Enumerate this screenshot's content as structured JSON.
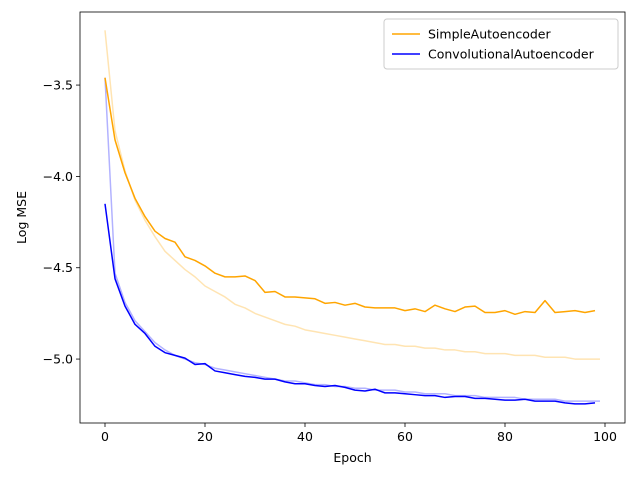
{
  "chart_data": {
    "type": "line",
    "title": "",
    "xlabel": "Epoch",
    "ylabel": "Log MSE",
    "xlim": [
      -5,
      104
    ],
    "ylim": [
      -5.35,
      -3.1
    ],
    "xticks": [
      0,
      20,
      40,
      60,
      80,
      100
    ],
    "xtick_labels": [
      "0",
      "20",
      "40",
      "60",
      "80",
      "100"
    ],
    "yticks": [
      -3.5,
      -4.0,
      -4.5,
      -5.0
    ],
    "ytick_labels": [
      "−3.5",
      "−4.0",
      "−4.5",
      "−5.0"
    ],
    "grid": false,
    "legend_position": "top-right",
    "series": [
      {
        "name": "SimpleAutoencoder",
        "role": "smoothed",
        "color": "#ffa500",
        "x": [
          0,
          2,
          4,
          6,
          8,
          10,
          12,
          14,
          16,
          18,
          20,
          22,
          24,
          26,
          28,
          30,
          32,
          34,
          36,
          38,
          40,
          42,
          44,
          46,
          48,
          50,
          52,
          54,
          56,
          58,
          60,
          62,
          64,
          66,
          68,
          70,
          72,
          74,
          76,
          78,
          80,
          82,
          84,
          86,
          88,
          90,
          92,
          94,
          96,
          98
        ],
        "values": [
          -3.46,
          -3.8,
          -3.98,
          -4.12,
          -4.22,
          -4.3,
          -4.34,
          -4.36,
          -4.44,
          -4.46,
          -4.49,
          -4.53,
          -4.55,
          -4.55,
          -4.545,
          -4.57,
          -4.635,
          -4.63,
          -4.66,
          -4.66,
          -4.665,
          -4.67,
          -4.695,
          -4.69,
          -4.705,
          -4.695,
          -4.715,
          -4.72,
          -4.72,
          -4.72,
          -4.735,
          -4.725,
          -4.74,
          -4.705,
          -4.725,
          -4.74,
          -4.715,
          -4.71,
          -4.745,
          -4.745,
          -4.735,
          -4.755,
          -4.74,
          -4.745,
          -4.68,
          -4.745,
          -4.74,
          -4.735,
          -4.745,
          -4.735
        ]
      },
      {
        "name": "ConvolutionalAutoencoder",
        "role": "smoothed",
        "color": "#0000ff",
        "x": [
          0,
          2,
          4,
          6,
          8,
          10,
          12,
          14,
          16,
          18,
          20,
          22,
          24,
          26,
          28,
          30,
          32,
          34,
          36,
          38,
          40,
          42,
          44,
          46,
          48,
          50,
          52,
          54,
          56,
          58,
          60,
          62,
          64,
          66,
          68,
          70,
          72,
          74,
          76,
          78,
          80,
          82,
          84,
          86,
          88,
          90,
          92,
          94,
          96,
          98
        ],
        "values": [
          -4.15,
          -4.56,
          -4.71,
          -4.81,
          -4.86,
          -4.93,
          -4.965,
          -4.98,
          -4.995,
          -5.03,
          -5.025,
          -5.065,
          -5.075,
          -5.085,
          -5.095,
          -5.1,
          -5.11,
          -5.11,
          -5.125,
          -5.135,
          -5.135,
          -5.145,
          -5.15,
          -5.145,
          -5.155,
          -5.17,
          -5.175,
          -5.165,
          -5.185,
          -5.185,
          -5.19,
          -5.195,
          -5.2,
          -5.2,
          -5.21,
          -5.205,
          -5.205,
          -5.215,
          -5.215,
          -5.22,
          -5.225,
          -5.225,
          -5.22,
          -5.23,
          -5.23,
          -5.23,
          -5.24,
          -5.245,
          -5.245,
          -5.24
        ]
      },
      {
        "role": "raw",
        "color": "#ffa500",
        "opacity": 0.3,
        "x": [
          0,
          2,
          4,
          6,
          8,
          10,
          12,
          14,
          16,
          18,
          20,
          22,
          24,
          26,
          28,
          30,
          32,
          34,
          36,
          38,
          40,
          42,
          44,
          46,
          48,
          50,
          52,
          54,
          56,
          58,
          60,
          62,
          64,
          66,
          68,
          70,
          72,
          74,
          76,
          78,
          80,
          82,
          84,
          86,
          88,
          90,
          92,
          94,
          96,
          98,
          99
        ],
        "values": [
          -3.2,
          -3.75,
          -3.97,
          -4.13,
          -4.24,
          -4.33,
          -4.41,
          -4.46,
          -4.51,
          -4.55,
          -4.6,
          -4.63,
          -4.66,
          -4.7,
          -4.72,
          -4.75,
          -4.77,
          -4.79,
          -4.81,
          -4.82,
          -4.84,
          -4.85,
          -4.86,
          -4.87,
          -4.88,
          -4.89,
          -4.9,
          -4.91,
          -4.92,
          -4.92,
          -4.93,
          -4.93,
          -4.94,
          -4.94,
          -4.95,
          -4.95,
          -4.96,
          -4.96,
          -4.97,
          -4.97,
          -4.97,
          -4.98,
          -4.98,
          -4.98,
          -4.99,
          -4.99,
          -4.99,
          -5.0,
          -5.0,
          -5.0,
          -5.0
        ]
      },
      {
        "role": "raw",
        "color": "#0000ff",
        "opacity": 0.3,
        "x": [
          0,
          2,
          4,
          6,
          8,
          10,
          12,
          14,
          16,
          18,
          20,
          22,
          24,
          26,
          28,
          30,
          32,
          34,
          36,
          38,
          40,
          42,
          44,
          46,
          48,
          50,
          52,
          54,
          56,
          58,
          60,
          62,
          64,
          66,
          68,
          70,
          72,
          74,
          76,
          78,
          80,
          82,
          84,
          86,
          88,
          90,
          92,
          94,
          96,
          98,
          99
        ],
        "values": [
          -3.46,
          -4.53,
          -4.69,
          -4.79,
          -4.85,
          -4.91,
          -4.95,
          -4.98,
          -5.0,
          -5.02,
          -5.03,
          -5.05,
          -5.06,
          -5.07,
          -5.08,
          -5.09,
          -5.1,
          -5.11,
          -5.12,
          -5.12,
          -5.13,
          -5.14,
          -5.14,
          -5.15,
          -5.15,
          -5.16,
          -5.16,
          -5.17,
          -5.17,
          -5.17,
          -5.18,
          -5.18,
          -5.19,
          -5.19,
          -5.19,
          -5.2,
          -5.2,
          -5.2,
          -5.21,
          -5.21,
          -5.21,
          -5.21,
          -5.22,
          -5.22,
          -5.22,
          -5.22,
          -5.23,
          -5.23,
          -5.23,
          -5.23,
          -5.23
        ]
      }
    ],
    "legend": [
      {
        "label": "SimpleAutoencoder",
        "color": "#ffa500"
      },
      {
        "label": "ConvolutionalAutoencoder",
        "color": "#0000ff"
      }
    ]
  }
}
